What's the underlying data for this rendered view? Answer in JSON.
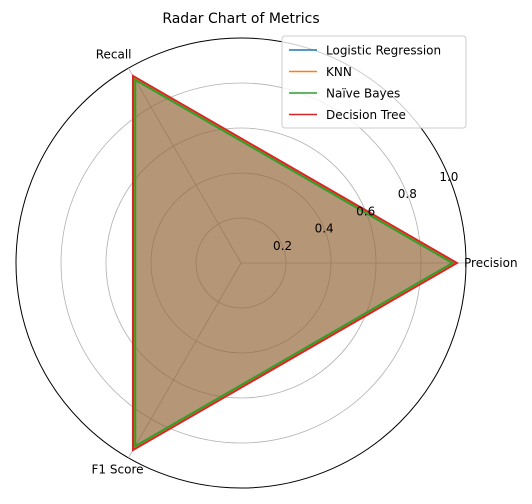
{
  "chart_data": {
    "type": "radar",
    "title": "Radar Chart of Metrics",
    "axes": [
      "Precision",
      "Recall",
      "F1 Score"
    ],
    "rlim": [
      0,
      1.0
    ],
    "rticks": [
      0.2,
      0.4,
      0.6,
      0.8,
      1.0
    ],
    "rtick_labels": [
      "0.2",
      "0.4",
      "0.6",
      "0.8",
      "1.0"
    ],
    "grid": true,
    "legend_position": "top-right",
    "series": [
      {
        "name": "Logistic Regression",
        "color": "#1f77b4",
        "values": [
          0.95,
          0.95,
          0.95
        ]
      },
      {
        "name": "KNN",
        "color": "#ff7f0e",
        "values": [
          0.95,
          0.95,
          0.95
        ]
      },
      {
        "name": "Naïve Bayes",
        "color": "#2ca02c",
        "values": [
          0.94,
          0.94,
          0.94
        ]
      },
      {
        "name": "Decision Tree",
        "color": "#d62728",
        "values": [
          0.96,
          0.96,
          0.96
        ]
      }
    ]
  }
}
